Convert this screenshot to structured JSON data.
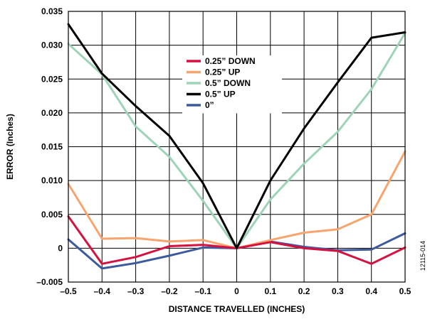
{
  "chart_data": {
    "type": "line",
    "xlabel": "DISTANCE TRAVELLED (INCHES)",
    "ylabel": "ERROR (Inches)",
    "xlim": [
      -0.5,
      0.5
    ],
    "ylim": [
      -0.005,
      0.035
    ],
    "grid": true,
    "legend_position": "top-center",
    "x": [
      -0.5,
      -0.4,
      -0.3,
      -0.2,
      -0.1,
      0,
      0.1,
      0.2,
      0.3,
      0.4,
      0.5
    ],
    "x_tick_labels": [
      "–0.5",
      "–0.4",
      "–0.3",
      "–0.2",
      "–0.1",
      "0",
      "0.1",
      "0.2",
      "0.3",
      "0.4",
      "0.5"
    ],
    "y_ticks": [
      -0.005,
      0,
      0.005,
      0.01,
      0.015,
      0.02,
      0.025,
      0.03,
      0.035
    ],
    "y_tick_labels": [
      "–0.005",
      "0",
      "0.005",
      "0.010",
      "0.015",
      "0.020",
      "0.025",
      "0.030",
      "0.035"
    ],
    "series": [
      {
        "name": "0.25” DOWN",
        "color": "#d6113f",
        "values": [
          0.0047,
          -0.0023,
          -0.0013,
          0.0003,
          0.0005,
          0,
          0.0009,
          0.0,
          -0.0004,
          -0.0023,
          0.0001
        ]
      },
      {
        "name": "0.25” UP",
        "color": "#f9a46e",
        "values": [
          0.0095,
          0.0014,
          0.0015,
          0.001,
          0.0012,
          0,
          0.0012,
          0.0023,
          0.0028,
          0.005,
          0.0143
        ]
      },
      {
        "name": "0.5” DOWN",
        "color": "#9dd3b7",
        "values": [
          0.0302,
          0.0257,
          0.018,
          0.0135,
          0.007,
          0,
          0.0072,
          0.0125,
          0.0172,
          0.0235,
          0.0318
        ]
      },
      {
        "name": "0.5” UP",
        "color": "#000000",
        "values": [
          0.0331,
          0.0258,
          0.021,
          0.0166,
          0.0096,
          0,
          0.01,
          0.0177,
          0.0245,
          0.0311,
          0.0319
        ]
      },
      {
        "name": "0”",
        "color": "#3d5a9c",
        "values": [
          0.0013,
          -0.003,
          -0.0022,
          -0.0011,
          0.0001,
          0,
          0.001,
          0.0002,
          -0.0003,
          -0.0002,
          0.0022
        ]
      }
    ],
    "figure_id": "12115-014"
  }
}
